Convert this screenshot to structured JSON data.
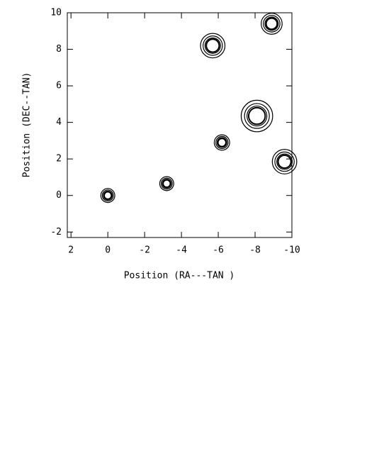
{
  "chart_data": {
    "type": "contour",
    "xlabel": "Position (RA---TAN )",
    "ylabel": "Position (DEC--TAN)",
    "xlim": [
      2.2,
      -10
    ],
    "ylim": [
      -2.3,
      10
    ],
    "xticks": [
      2,
      0,
      -2,
      -4,
      -6,
      -8,
      -10
    ],
    "yticks": [
      -2,
      0,
      2,
      4,
      6,
      8,
      10
    ],
    "color": "#000000",
    "sources": {
      "x": [
        0,
        -3.2,
        -6.2,
        -8.1,
        -5.7,
        -9.6,
        -8.9
      ],
      "y": [
        0,
        0.65,
        2.9,
        4.35,
        8.2,
        1.85,
        9.4
      ],
      "size": [
        0.2,
        0.2,
        0.22,
        0.45,
        0.35,
        0.35,
        0.3
      ]
    }
  }
}
